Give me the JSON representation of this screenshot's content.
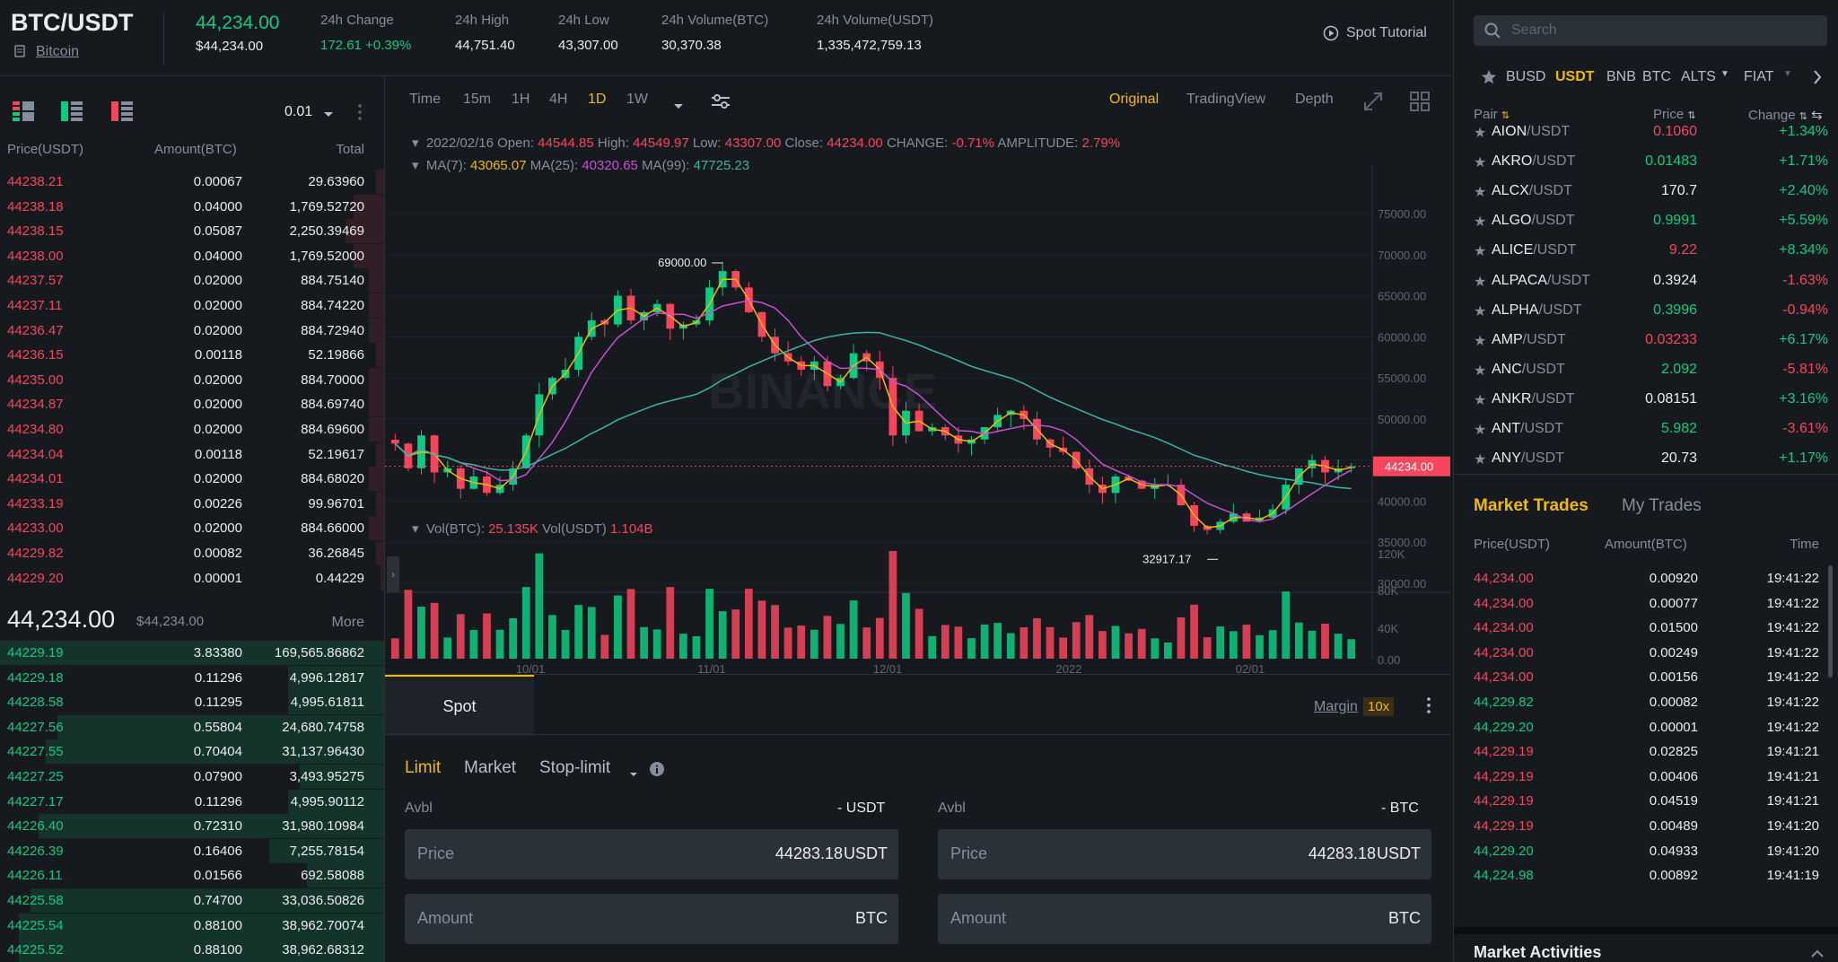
{
  "header": {
    "pair": "BTC/USDT",
    "coin_link": "Bitcoin",
    "last_price": "44,234.00",
    "last_price_usd": "$44,234.00",
    "stats": [
      {
        "label": "24h Change",
        "value": "172.61 +0.39%",
        "color": "#0ecb81"
      },
      {
        "label": "24h High",
        "value": "44,751.40",
        "color": "#eaecef"
      },
      {
        "label": "24h Low",
        "value": "43,307.00",
        "color": "#eaecef"
      },
      {
        "label": "24h Volume(BTC)",
        "value": "30,370.38",
        "color": "#eaecef"
      },
      {
        "label": "24h Volume(USDT)",
        "value": "1,335,472,759.13",
        "color": "#eaecef"
      }
    ],
    "tutorial": "Spot Tutorial"
  },
  "orderbook": {
    "precision": "0.01",
    "columns": [
      "Price(USDT)",
      "Amount(BTC)",
      "Total"
    ],
    "asks": [
      {
        "price": "44238.21",
        "amount": "0.00067",
        "total": "29.63960",
        "depth": 0.02
      },
      {
        "price": "44238.18",
        "amount": "0.04000",
        "total": "1,769.52720",
        "depth": 0.08
      },
      {
        "price": "44238.15",
        "amount": "0.05087",
        "total": "2,250.39469",
        "depth": 0.1
      },
      {
        "price": "44238.00",
        "amount": "0.04000",
        "total": "1,769.52000",
        "depth": 0.08
      },
      {
        "price": "44237.57",
        "amount": "0.02000",
        "total": "884.75140",
        "depth": 0.04
      },
      {
        "price": "44237.11",
        "amount": "0.02000",
        "total": "884.74220",
        "depth": 0.04
      },
      {
        "price": "44236.47",
        "amount": "0.02000",
        "total": "884.72940",
        "depth": 0.04
      },
      {
        "price": "44236.15",
        "amount": "0.00118",
        "total": "52.19866",
        "depth": 0.02
      },
      {
        "price": "44235.00",
        "amount": "0.02000",
        "total": "884.70000",
        "depth": 0.04
      },
      {
        "price": "44234.87",
        "amount": "0.02000",
        "total": "884.69740",
        "depth": 0.04
      },
      {
        "price": "44234.80",
        "amount": "0.02000",
        "total": "884.69600",
        "depth": 0.04
      },
      {
        "price": "44234.04",
        "amount": "0.00118",
        "total": "52.19617",
        "depth": 0.02
      },
      {
        "price": "44234.01",
        "amount": "0.02000",
        "total": "884.68020",
        "depth": 0.04
      },
      {
        "price": "44233.19",
        "amount": "0.00226",
        "total": "99.96701",
        "depth": 0.02
      },
      {
        "price": "44233.00",
        "amount": "0.02000",
        "total": "884.66000",
        "depth": 0.04
      },
      {
        "price": "44229.82",
        "amount": "0.00082",
        "total": "36.26845",
        "depth": 0.02
      },
      {
        "price": "44229.20",
        "amount": "0.00001",
        "total": "0.44229",
        "depth": 0.01
      }
    ],
    "mid_price": "44,234.00",
    "mid_price_usd": "$44,234.00",
    "more": "More",
    "bids": [
      {
        "price": "44229.19",
        "amount": "3.83380",
        "total": "169,565.86862",
        "depth": 1.0
      },
      {
        "price": "44229.18",
        "amount": "0.11296",
        "total": "4,996.12817",
        "depth": 0.25
      },
      {
        "price": "44228.58",
        "amount": "0.11295",
        "total": "4,995.61811",
        "depth": 0.25
      },
      {
        "price": "44227.56",
        "amount": "0.55804",
        "total": "24,680.74758",
        "depth": 0.85
      },
      {
        "price": "44227.55",
        "amount": "0.70404",
        "total": "31,137.96430",
        "depth": 0.88
      },
      {
        "price": "44227.25",
        "amount": "0.07900",
        "total": "3,493.95275",
        "depth": 0.22
      },
      {
        "price": "44227.17",
        "amount": "0.11296",
        "total": "4,995.90112",
        "depth": 0.25
      },
      {
        "price": "44226.40",
        "amount": "0.72310",
        "total": "31,980.10984",
        "depth": 0.9
      },
      {
        "price": "44226.39",
        "amount": "0.16406",
        "total": "7,255.78154",
        "depth": 0.3
      },
      {
        "price": "44226.11",
        "amount": "0.01566",
        "total": "692.58088",
        "depth": 0.2
      },
      {
        "price": "44225.58",
        "amount": "0.74700",
        "total": "33,036.50826",
        "depth": 0.92
      },
      {
        "price": "44225.54",
        "amount": "0.88100",
        "total": "38,962.70074",
        "depth": 0.95
      },
      {
        "price": "44225.52",
        "amount": "0.88100",
        "total": "38,962.68312",
        "depth": 0.95
      }
    ]
  },
  "chart": {
    "timeframes": [
      "Time",
      "15m",
      "1H",
      "4H",
      "1D",
      "1W"
    ],
    "active_timeframe": "1D",
    "views": [
      "Original",
      "TradingView",
      "Depth"
    ],
    "active_view": "Original",
    "ohlc": {
      "date": "2022/02/16",
      "open_label": "Open:",
      "open": "44544.85",
      "high_label": "High:",
      "high": "44549.97",
      "low_label": "Low:",
      "low": "43307.00",
      "close_label": "Close:",
      "close": "44234.00",
      "change_label": "CHANGE:",
      "change": "-0.71%",
      "amp_label": "AMPLITUDE:",
      "amp": "2.79%"
    },
    "ma": {
      "ma7_label": "MA(7):",
      "ma7": "43065.07",
      "ma25_label": "MA(25):",
      "ma25": "40320.65",
      "ma99_label": "MA(99):",
      "ma99": "47725.23"
    },
    "vol": {
      "btc_label": "Vol(BTC):",
      "btc": "25.135K",
      "usdt_label": "Vol(USDT)",
      "usdt": "1.104B"
    },
    "high_marker": "69000.00",
    "low_marker": "32917.17",
    "current_price_tag": "44234.00",
    "watermark": "BINANCE",
    "price_axis": [
      "75000.00",
      "70000.00",
      "65000.00",
      "60000.00",
      "55000.00",
      "50000.00",
      "45000.00",
      "40000.00",
      "35000.00",
      "30000.00"
    ],
    "vol_axis": [
      "120K",
      "80K",
      "40K",
      "0.00"
    ],
    "date_axis": [
      "10/01",
      "11/01",
      "12/01",
      "2022",
      "02/01"
    ]
  },
  "chart_data": {
    "type": "candlestick",
    "ylim": [
      30000,
      75000
    ],
    "x_ticks": [
      "10/01",
      "11/01",
      "12/01",
      "2022",
      "02/01"
    ],
    "close_path": [
      47000,
      44000,
      48000,
      43500,
      44000,
      41500,
      43000,
      41000,
      42000,
      44000,
      48000,
      53000,
      55000,
      56000,
      60000,
      62000,
      61500,
      65000,
      62000,
      63000,
      64000,
      61000,
      61500,
      62000,
      66000,
      68000,
      66000,
      63000,
      60000,
      58000,
      57000,
      56000,
      57000,
      54000,
      55000,
      58000,
      57000,
      55000,
      48000,
      51000,
      48500,
      49000,
      48000,
      47000,
      47500,
      49000,
      50500,
      51000,
      50000,
      47500,
      46500,
      46000,
      44000,
      42000,
      41000,
      43000,
      42500,
      41500,
      42000,
      42000,
      39500,
      37000,
      36500,
      37500,
      38500,
      37500,
      38000,
      39000,
      42000,
      44000,
      45000,
      43500,
      44000,
      44234
    ],
    "ma_series": [
      {
        "name": "MA(7)",
        "color": "#f0b90b"
      },
      {
        "name": "MA(25)",
        "color": "#c94fd6"
      },
      {
        "name": "MA(99)",
        "color": "#3bb3a8"
      }
    ]
  },
  "order_form": {
    "tab": "Spot",
    "margin_label": "Margin",
    "leverage": "10x",
    "order_types": [
      "Limit",
      "Market",
      "Stop-limit"
    ],
    "buy": {
      "avbl_label": "Avbl",
      "avbl_value": "- USDT",
      "price_label": "Price",
      "price_value": "44283.18",
      "price_unit": "USDT",
      "amount_label": "Amount",
      "amount_unit": "BTC"
    },
    "sell": {
      "avbl_label": "Avbl",
      "avbl_value": "- BTC",
      "price_label": "Price",
      "price_value": "44283.18",
      "price_unit": "USDT",
      "amount_label": "Amount",
      "amount_unit": "BTC"
    }
  },
  "market": {
    "search_placeholder": "Search",
    "tabs": [
      "BUSD",
      "USDT",
      "BNB",
      "BTC",
      "ALTS",
      "FIAT"
    ],
    "active_tab": "USDT",
    "columns": [
      "Pair",
      "Price",
      "Change"
    ],
    "pairs": [
      {
        "base": "AION",
        "quote": "/USDT",
        "price": "0.1060",
        "change": "+1.34%",
        "price_up": false,
        "change_up": true
      },
      {
        "base": "AKRO",
        "quote": "/USDT",
        "price": "0.01483",
        "change": "+1.71%",
        "price_up": true,
        "change_up": true
      },
      {
        "base": "ALCX",
        "quote": "/USDT",
        "price": "170.7",
        "change": "+2.40%",
        "price_up": null,
        "change_up": true
      },
      {
        "base": "ALGO",
        "quote": "/USDT",
        "price": "0.9991",
        "change": "+5.59%",
        "price_up": true,
        "change_up": true
      },
      {
        "base": "ALICE",
        "quote": "/USDT",
        "price": "9.22",
        "change": "+8.34%",
        "price_up": false,
        "change_up": true
      },
      {
        "base": "ALPACA",
        "quote": "/USDT",
        "price": "0.3924",
        "change": "-1.63%",
        "price_up": null,
        "change_up": false
      },
      {
        "base": "ALPHA",
        "quote": "/USDT",
        "price": "0.3996",
        "change": "-0.94%",
        "price_up": true,
        "change_up": false
      },
      {
        "base": "AMP",
        "quote": "/USDT",
        "price": "0.03233",
        "change": "+6.17%",
        "price_up": false,
        "change_up": true
      },
      {
        "base": "ANC",
        "quote": "/USDT",
        "price": "2.092",
        "change": "-5.81%",
        "price_up": true,
        "change_up": false
      },
      {
        "base": "ANKR",
        "quote": "/USDT",
        "price": "0.08151",
        "change": "+3.16%",
        "price_up": null,
        "change_up": true
      },
      {
        "base": "ANT",
        "quote": "/USDT",
        "price": "5.982",
        "change": "-3.61%",
        "price_up": true,
        "change_up": false
      },
      {
        "base": "ANY",
        "quote": "/USDT",
        "price": "20.73",
        "change": "+1.17%",
        "price_up": null,
        "change_up": true
      }
    ]
  },
  "trades": {
    "tabs": [
      "Market Trades",
      "My Trades"
    ],
    "columns": [
      "Price(USDT)",
      "Amount(BTC)",
      "Time"
    ],
    "rows": [
      {
        "price": "44,234.00",
        "amount": "0.00920",
        "time": "19:41:22",
        "up": false
      },
      {
        "price": "44,234.00",
        "amount": "0.00077",
        "time": "19:41:22",
        "up": false
      },
      {
        "price": "44,234.00",
        "amount": "0.01500",
        "time": "19:41:22",
        "up": false
      },
      {
        "price": "44,234.00",
        "amount": "0.00249",
        "time": "19:41:22",
        "up": false
      },
      {
        "price": "44,234.00",
        "amount": "0.00156",
        "time": "19:41:22",
        "up": false
      },
      {
        "price": "44,229.82",
        "amount": "0.00082",
        "time": "19:41:22",
        "up": true
      },
      {
        "price": "44,229.20",
        "amount": "0.00001",
        "time": "19:41:22",
        "up": true
      },
      {
        "price": "44,229.19",
        "amount": "0.02825",
        "time": "19:41:21",
        "up": false
      },
      {
        "price": "44,229.19",
        "amount": "0.00406",
        "time": "19:41:21",
        "up": false
      },
      {
        "price": "44,229.19",
        "amount": "0.04519",
        "time": "19:41:21",
        "up": false
      },
      {
        "price": "44,229.19",
        "amount": "0.00489",
        "time": "19:41:20",
        "up": false
      },
      {
        "price": "44,229.20",
        "amount": "0.04933",
        "time": "19:41:20",
        "up": true
      },
      {
        "price": "44,224.98",
        "amount": "0.00892",
        "time": "19:41:19",
        "up": true
      }
    ],
    "activities_title": "Market Activities"
  }
}
